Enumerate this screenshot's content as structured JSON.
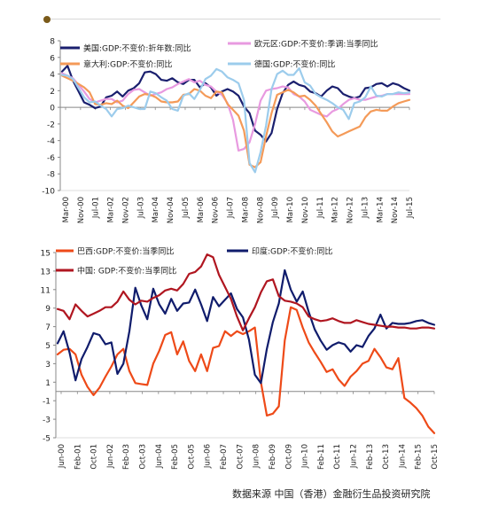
{
  "source_note": "数据来源 中国（香港）金融衍生品投资研究院",
  "chart_data": [
    {
      "type": "line",
      "yticks": [
        8,
        6,
        4,
        2,
        0,
        -2,
        -4,
        -6,
        -8,
        -10
      ],
      "ylim": [
        -10,
        8
      ],
      "x_tick_labels": [
        "Mar-00",
        "Nov-00",
        "Jul-01",
        "Mar-02",
        "Nov-02",
        "Jul-03",
        "Mar-04",
        "Nov-04",
        "Jul-05",
        "Mar-06",
        "Nov-06",
        "Jul-07",
        "Mar-08",
        "Nov-08",
        "Jul-09",
        "Mar-10",
        "Nov-10",
        "Jul-11",
        "Mar-12",
        "Nov-12",
        "Jul-13",
        "Mar-14",
        "Nov-14",
        "Jul-15"
      ],
      "series": [
        {
          "name": "美国:GDP:不变价:折年数:同比",
          "color": "#1a1f6e",
          "values": [
            4.3,
            5.0,
            3.2,
            1.9,
            0.6,
            0.3,
            -0.1,
            0.1,
            1.2,
            1.4,
            1.9,
            1.3,
            2.0,
            2.3,
            2.9,
            4.2,
            4.3,
            4.0,
            3.3,
            3.2,
            3.5,
            3.0,
            2.8,
            3.3,
            3.3,
            2.4,
            2.9,
            2.4,
            1.4,
            1.9,
            2.2,
            1.9,
            1.4,
            0.1,
            -0.7,
            -2.8,
            -3.3,
            -4.1,
            -3.1,
            -0.2,
            1.7,
            2.7,
            3.1,
            2.7,
            2.5,
            1.9,
            1.7,
            1.3,
            2.0,
            2.5,
            2.3,
            1.6,
            1.3,
            1.1,
            1.3,
            2.3,
            2.4,
            2.8,
            2.9,
            2.5,
            2.9,
            2.7,
            2.3,
            2.0
          ]
        },
        {
          "name": "欧元区:GDP:不变价:季调:当季同比",
          "color": "#e89ae0",
          "values": [
            4.1,
            3.8,
            3.5,
            2.7,
            1.9,
            1.0,
            0.6,
            0.8,
            1.0,
            1.0,
            0.6,
            0.8,
            1.6,
            2.1,
            2.2,
            1.8,
            1.4,
            1.6,
            1.8,
            2.2,
            2.4,
            2.8,
            3.1,
            3.4,
            3.0,
            3.2,
            2.7,
            2.5,
            1.9,
            1.5,
            0.5,
            -1.5,
            -5.2,
            -5.0,
            -4.2,
            -2.0,
            0.8,
            2.0,
            2.2,
            2.3,
            2.5,
            2.4,
            1.6,
            1.3,
            0.7,
            -0.3,
            -0.6,
            -0.9,
            -1.1,
            -0.5,
            -0.2,
            0.4,
            0.9,
            1.1,
            0.9,
            0.9,
            1.1,
            1.3,
            1.4,
            1.6,
            1.6,
            1.6,
            1.6,
            1.6
          ]
        },
        {
          "name": "意大利:GDP:不变价:同比",
          "color": "#f49a58",
          "values": [
            3.8,
            3.5,
            3.2,
            2.8,
            2.4,
            1.8,
            0.4,
            0.3,
            0.5,
            0.4,
            0.8,
            0.2,
            -0.1,
            0.6,
            1.3,
            1.6,
            1.5,
            1.2,
            0.7,
            0.6,
            0.6,
            0.7,
            1.5,
            1.6,
            2.2,
            2.0,
            1.4,
            1.1,
            1.9,
            1.8,
            0.4,
            -0.3,
            -1.0,
            -2.8,
            -6.9,
            -7.2,
            -6.6,
            -3.5,
            -0.7,
            1.5,
            1.8,
            2.1,
            1.8,
            1.3,
            1.4,
            0.9,
            0.2,
            -0.8,
            -1.8,
            -2.9,
            -3.5,
            -3.2,
            -2.9,
            -2.6,
            -2.3,
            -1.2,
            -0.5,
            -0.3,
            -0.4,
            -0.4,
            0.1,
            0.5,
            0.7,
            0.9
          ]
        },
        {
          "name": "德国:GDP:不变价:同比",
          "color": "#9cccec",
          "values": [
            3.9,
            3.8,
            3.4,
            2.3,
            1.2,
            0.6,
            0.7,
            0.2,
            -0.2,
            -1.1,
            -0.2,
            -0.1,
            0.2,
            0.0,
            -0.2,
            -0.2,
            1.9,
            1.7,
            1.2,
            0.8,
            -0.2,
            -0.4,
            1.4,
            1.7,
            1.0,
            2.1,
            3.4,
            3.8,
            4.6,
            4.3,
            3.6,
            3.3,
            2.9,
            0.9,
            -6.7,
            -7.8,
            -5.4,
            -2.2,
            2.2,
            4.0,
            4.4,
            3.9,
            3.9,
            4.7,
            3.0,
            2.6,
            1.6,
            1.2,
            0.9,
            0.5,
            0.0,
            -0.3,
            -1.4,
            0.5,
            0.7,
            1.2,
            2.5,
            1.4,
            1.3,
            1.6,
            1.6,
            1.8,
            1.7,
            1.8
          ]
        }
      ]
    },
    {
      "type": "line",
      "yticks": [
        15,
        13,
        11,
        9,
        7,
        5,
        3,
        1,
        -1,
        -3,
        -5
      ],
      "ylim": [
        -5,
        15
      ],
      "x_tick_labels": [
        "Jun-00",
        "Feb-01",
        "Oct-01",
        "Jun-02",
        "Feb-03",
        "Oct-03",
        "Jun-04",
        "Feb-05",
        "Oct-05",
        "Jun-06",
        "Feb-07",
        "Oct-07",
        "Jun-08",
        "Feb-09",
        "Oct-09",
        "Jun-10",
        "Feb-11",
        "Oct-11",
        "Jun-12",
        "Feb-13",
        "Oct-13",
        "Jun-14",
        "Feb-15",
        "Oct-15"
      ],
      "series": [
        {
          "name": "巴西:GDP:不变价:当季同比",
          "color": "#ee4a18",
          "values": [
            4.0,
            4.5,
            4.6,
            4.0,
            1.8,
            0.5,
            -0.4,
            0.4,
            1.6,
            2.7,
            4.0,
            4.6,
            2.2,
            0.9,
            0.8,
            0.7,
            3.0,
            4.4,
            6.1,
            6.4,
            4.0,
            5.4,
            3.3,
            2.2,
            4.0,
            2.2,
            4.7,
            4.9,
            6.5,
            6.0,
            6.5,
            6.2,
            6.5,
            6.9,
            1.0,
            -2.6,
            -2.4,
            -1.6,
            5.5,
            9.1,
            8.8,
            6.9,
            5.3,
            4.2,
            3.2,
            2.1,
            2.4,
            1.3,
            0.6,
            1.6,
            2.2,
            3.0,
            3.3,
            4.6,
            3.7,
            2.6,
            2.4,
            3.6,
            -0.7,
            -1.2,
            -1.8,
            -2.6,
            -3.8,
            -4.5
          ]
        },
        {
          "name": "印度:GDP:不变价:同比",
          "color": "#101c6c",
          "values": [
            5.2,
            6.5,
            4.2,
            1.2,
            3.5,
            4.8,
            6.3,
            6.1,
            5.1,
            5.3,
            1.9,
            3.0,
            6.5,
            11.2,
            9.3,
            7.8,
            11.1,
            9.4,
            8.4,
            10.0,
            8.7,
            9.5,
            9.6,
            11.0,
            9.4,
            7.6,
            10.2,
            9.2,
            9.9,
            10.6,
            8.9,
            8.0,
            5.6,
            1.8,
            0.9,
            4.6,
            7.5,
            9.5,
            13.1,
            11.0,
            9.7,
            10.8,
            8.6,
            6.7,
            5.5,
            4.5,
            5.0,
            5.3,
            5.1,
            4.3,
            5.0,
            4.8,
            6.0,
            6.8,
            8.3,
            6.8,
            7.4,
            7.3,
            7.3,
            7.4,
            7.6,
            7.7,
            7.4,
            7.2
          ]
        },
        {
          "name": "中国: GDP:不变价:当季同比",
          "color": "#b01620",
          "values": [
            8.9,
            8.7,
            7.8,
            9.4,
            8.7,
            8.1,
            8.4,
            8.7,
            9.1,
            9.1,
            9.7,
            10.8,
            9.9,
            9.4,
            9.8,
            9.7,
            10.1,
            10.4,
            10.9,
            11.1,
            10.9,
            11.6,
            12.7,
            12.9,
            13.5,
            14.8,
            14.5,
            12.6,
            11.3,
            10.0,
            8.1,
            6.6,
            7.9,
            9.1,
            10.7,
            11.9,
            12.1,
            10.3,
            9.8,
            9.7,
            9.5,
            9.1,
            8.1,
            7.8,
            7.6,
            7.7,
            7.9,
            7.6,
            7.4,
            7.4,
            7.7,
            7.5,
            7.3,
            7.2,
            7.1,
            7.0,
            7.0,
            6.9,
            6.9,
            6.8,
            6.8,
            6.9,
            6.9,
            6.8
          ]
        }
      ]
    }
  ]
}
